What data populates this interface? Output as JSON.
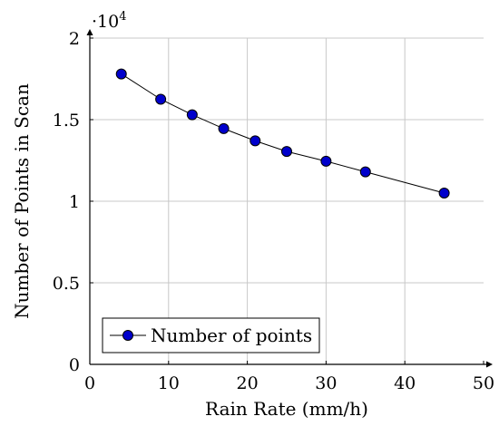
{
  "chart_data": {
    "type": "line",
    "xlabel": "Rain Rate (mm/h)",
    "ylabel": "Number of Points in Scan",
    "y_scale_base": "·10",
    "y_scale_exponent": "4",
    "xlim": [
      0,
      50
    ],
    "ylim": [
      0,
      2
    ],
    "xticks": [
      0,
      10,
      20,
      30,
      40,
      50
    ],
    "xtick_labels": [
      "0",
      "10",
      "20",
      "30",
      "40",
      "50"
    ],
    "yticks": [
      0,
      0.5,
      1,
      1.5,
      2
    ],
    "ytick_labels": [
      "0",
      "0.5",
      "1",
      "1.5",
      "2"
    ],
    "grid": true,
    "legend_position": "bottom-left",
    "series": [
      {
        "name": "Number of points",
        "color": "#0000cc",
        "marker": "circle",
        "x": [
          4,
          9,
          13,
          17,
          21,
          25,
          30,
          35,
          45
        ],
        "y": [
          1.78,
          1.625,
          1.53,
          1.445,
          1.37,
          1.305,
          1.245,
          1.18,
          1.05
        ]
      }
    ]
  }
}
